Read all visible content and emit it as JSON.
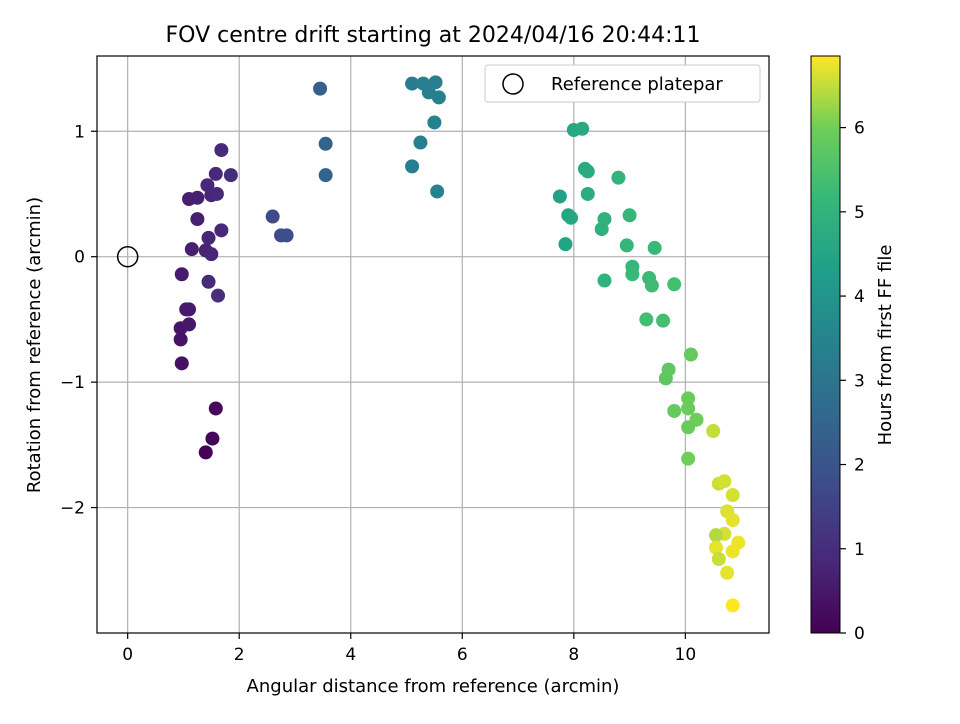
{
  "chart_data": {
    "type": "scatter",
    "title": "FOV centre drift starting at 2024/04/16 20:44:11",
    "xlabel": "Angular distance from reference (arcmin)",
    "ylabel": "Rotation from reference (arcmin)",
    "xlim": [
      -0.55,
      11.5
    ],
    "ylim": [
      -3.0,
      1.6
    ],
    "xticks": [
      0,
      2,
      4,
      6,
      8,
      10
    ],
    "yticks": [
      -2,
      -1,
      0,
      1
    ],
    "xtick_labels": [
      "0",
      "2",
      "4",
      "6",
      "8",
      "10"
    ],
    "ytick_labels": [
      "−2",
      "−1",
      "0",
      "1"
    ],
    "grid": true,
    "legend": {
      "position": "top-right",
      "entries": [
        "Reference platepar"
      ]
    },
    "reference_point": {
      "x": 0,
      "y": 0
    },
    "colorbar": {
      "label": "Hours from first FF file",
      "colormap": "viridis",
      "range": [
        0,
        6.85
      ],
      "ticks": [
        0,
        1,
        2,
        3,
        4,
        5,
        6
      ],
      "tick_labels": [
        "0",
        "1",
        "2",
        "3",
        "4",
        "5",
        "6"
      ]
    },
    "points": [
      {
        "x": 1.4,
        "y": -1.56,
        "c": 0.05
      },
      {
        "x": 1.52,
        "y": -1.45,
        "c": 0.1
      },
      {
        "x": 1.58,
        "y": -1.21,
        "c": 0.15
      },
      {
        "x": 0.97,
        "y": -0.85,
        "c": 0.35
      },
      {
        "x": 0.95,
        "y": -0.66,
        "c": 0.4
      },
      {
        "x": 0.95,
        "y": -0.57,
        "c": 0.45
      },
      {
        "x": 1.1,
        "y": -0.54,
        "c": 0.5
      },
      {
        "x": 1.05,
        "y": -0.42,
        "c": 0.55
      },
      {
        "x": 1.1,
        "y": -0.42,
        "c": 0.55
      },
      {
        "x": 0.97,
        "y": -0.14,
        "c": 0.6
      },
      {
        "x": 1.45,
        "y": -0.2,
        "c": 0.9
      },
      {
        "x": 1.62,
        "y": -0.31,
        "c": 1.0
      },
      {
        "x": 1.15,
        "y": 0.06,
        "c": 0.65
      },
      {
        "x": 1.4,
        "y": 0.05,
        "c": 0.75
      },
      {
        "x": 1.5,
        "y": 0.02,
        "c": 0.8
      },
      {
        "x": 1.45,
        "y": 0.15,
        "c": 0.8
      },
      {
        "x": 1.68,
        "y": 0.21,
        "c": 0.85
      },
      {
        "x": 1.25,
        "y": 0.3,
        "c": 0.7
      },
      {
        "x": 1.1,
        "y": 0.46,
        "c": 0.65
      },
      {
        "x": 1.25,
        "y": 0.47,
        "c": 0.7
      },
      {
        "x": 1.5,
        "y": 0.49,
        "c": 0.8
      },
      {
        "x": 1.6,
        "y": 0.5,
        "c": 0.85
      },
      {
        "x": 1.43,
        "y": 0.57,
        "c": 0.85
      },
      {
        "x": 1.58,
        "y": 0.66,
        "c": 0.9
      },
      {
        "x": 1.85,
        "y": 0.65,
        "c": 0.95
      },
      {
        "x": 1.68,
        "y": 0.85,
        "c": 0.9
      },
      {
        "x": 2.6,
        "y": 0.32,
        "c": 1.7
      },
      {
        "x": 2.75,
        "y": 0.17,
        "c": 1.8
      },
      {
        "x": 2.85,
        "y": 0.17,
        "c": 1.85
      },
      {
        "x": 3.45,
        "y": 1.34,
        "c": 2.3
      },
      {
        "x": 3.55,
        "y": 0.9,
        "c": 2.4
      },
      {
        "x": 3.55,
        "y": 0.65,
        "c": 2.45
      },
      {
        "x": 5.1,
        "y": 1.38,
        "c": 3.2
      },
      {
        "x": 5.3,
        "y": 1.38,
        "c": 3.25
      },
      {
        "x": 5.52,
        "y": 1.39,
        "c": 3.3
      },
      {
        "x": 5.4,
        "y": 1.31,
        "c": 3.3
      },
      {
        "x": 5.58,
        "y": 1.27,
        "c": 3.35
      },
      {
        "x": 5.5,
        "y": 1.07,
        "c": 3.4
      },
      {
        "x": 5.25,
        "y": 0.91,
        "c": 3.35
      },
      {
        "x": 5.1,
        "y": 0.72,
        "c": 3.3
      },
      {
        "x": 5.55,
        "y": 0.52,
        "c": 3.45
      },
      {
        "x": 8.0,
        "y": 1.01,
        "c": 4.6
      },
      {
        "x": 8.15,
        "y": 1.02,
        "c": 4.65
      },
      {
        "x": 8.2,
        "y": 0.7,
        "c": 4.7
      },
      {
        "x": 8.25,
        "y": 0.68,
        "c": 4.75
      },
      {
        "x": 8.8,
        "y": 0.63,
        "c": 5.0
      },
      {
        "x": 7.75,
        "y": 0.48,
        "c": 4.4
      },
      {
        "x": 8.25,
        "y": 0.5,
        "c": 4.8
      },
      {
        "x": 7.9,
        "y": 0.33,
        "c": 4.5
      },
      {
        "x": 7.95,
        "y": 0.31,
        "c": 4.55
      },
      {
        "x": 8.55,
        "y": 0.3,
        "c": 4.9
      },
      {
        "x": 9.0,
        "y": 0.33,
        "c": 5.1
      },
      {
        "x": 8.5,
        "y": 0.22,
        "c": 4.9
      },
      {
        "x": 7.85,
        "y": 0.1,
        "c": 4.5
      },
      {
        "x": 8.95,
        "y": 0.09,
        "c": 5.1
      },
      {
        "x": 9.45,
        "y": 0.07,
        "c": 5.2
      },
      {
        "x": 9.05,
        "y": -0.08,
        "c": 5.15
      },
      {
        "x": 9.05,
        "y": -0.14,
        "c": 5.2
      },
      {
        "x": 9.35,
        "y": -0.17,
        "c": 5.25
      },
      {
        "x": 9.4,
        "y": -0.23,
        "c": 5.3
      },
      {
        "x": 8.55,
        "y": -0.19,
        "c": 4.95
      },
      {
        "x": 9.8,
        "y": -0.22,
        "c": 5.4
      },
      {
        "x": 9.3,
        "y": -0.5,
        "c": 5.35
      },
      {
        "x": 9.6,
        "y": -0.51,
        "c": 5.4
      },
      {
        "x": 10.1,
        "y": -0.78,
        "c": 5.85
      },
      {
        "x": 9.7,
        "y": -0.9,
        "c": 5.75
      },
      {
        "x": 9.65,
        "y": -0.97,
        "c": 5.75
      },
      {
        "x": 10.05,
        "y": -1.13,
        "c": 5.9
      },
      {
        "x": 9.8,
        "y": -1.23,
        "c": 5.85
      },
      {
        "x": 10.05,
        "y": -1.21,
        "c": 5.9
      },
      {
        "x": 10.2,
        "y": -1.3,
        "c": 5.95
      },
      {
        "x": 10.05,
        "y": -1.36,
        "c": 5.9
      },
      {
        "x": 10.5,
        "y": -1.39,
        "c": 6.5
      },
      {
        "x": 10.05,
        "y": -1.61,
        "c": 6.0
      },
      {
        "x": 10.6,
        "y": -1.81,
        "c": 6.55
      },
      {
        "x": 10.7,
        "y": -1.79,
        "c": 6.6
      },
      {
        "x": 10.85,
        "y": -1.9,
        "c": 6.6
      },
      {
        "x": 10.75,
        "y": -2.03,
        "c": 6.65
      },
      {
        "x": 10.85,
        "y": -2.1,
        "c": 6.7
      },
      {
        "x": 10.7,
        "y": -2.21,
        "c": 6.6
      },
      {
        "x": 10.55,
        "y": -2.22,
        "c": 6.4
      },
      {
        "x": 10.95,
        "y": -2.28,
        "c": 6.75
      },
      {
        "x": 10.55,
        "y": -2.32,
        "c": 6.7
      },
      {
        "x": 10.85,
        "y": -2.35,
        "c": 6.75
      },
      {
        "x": 10.6,
        "y": -2.41,
        "c": 6.55
      },
      {
        "x": 10.75,
        "y": -2.52,
        "c": 6.7
      },
      {
        "x": 10.85,
        "y": -2.78,
        "c": 6.85
      }
    ]
  }
}
